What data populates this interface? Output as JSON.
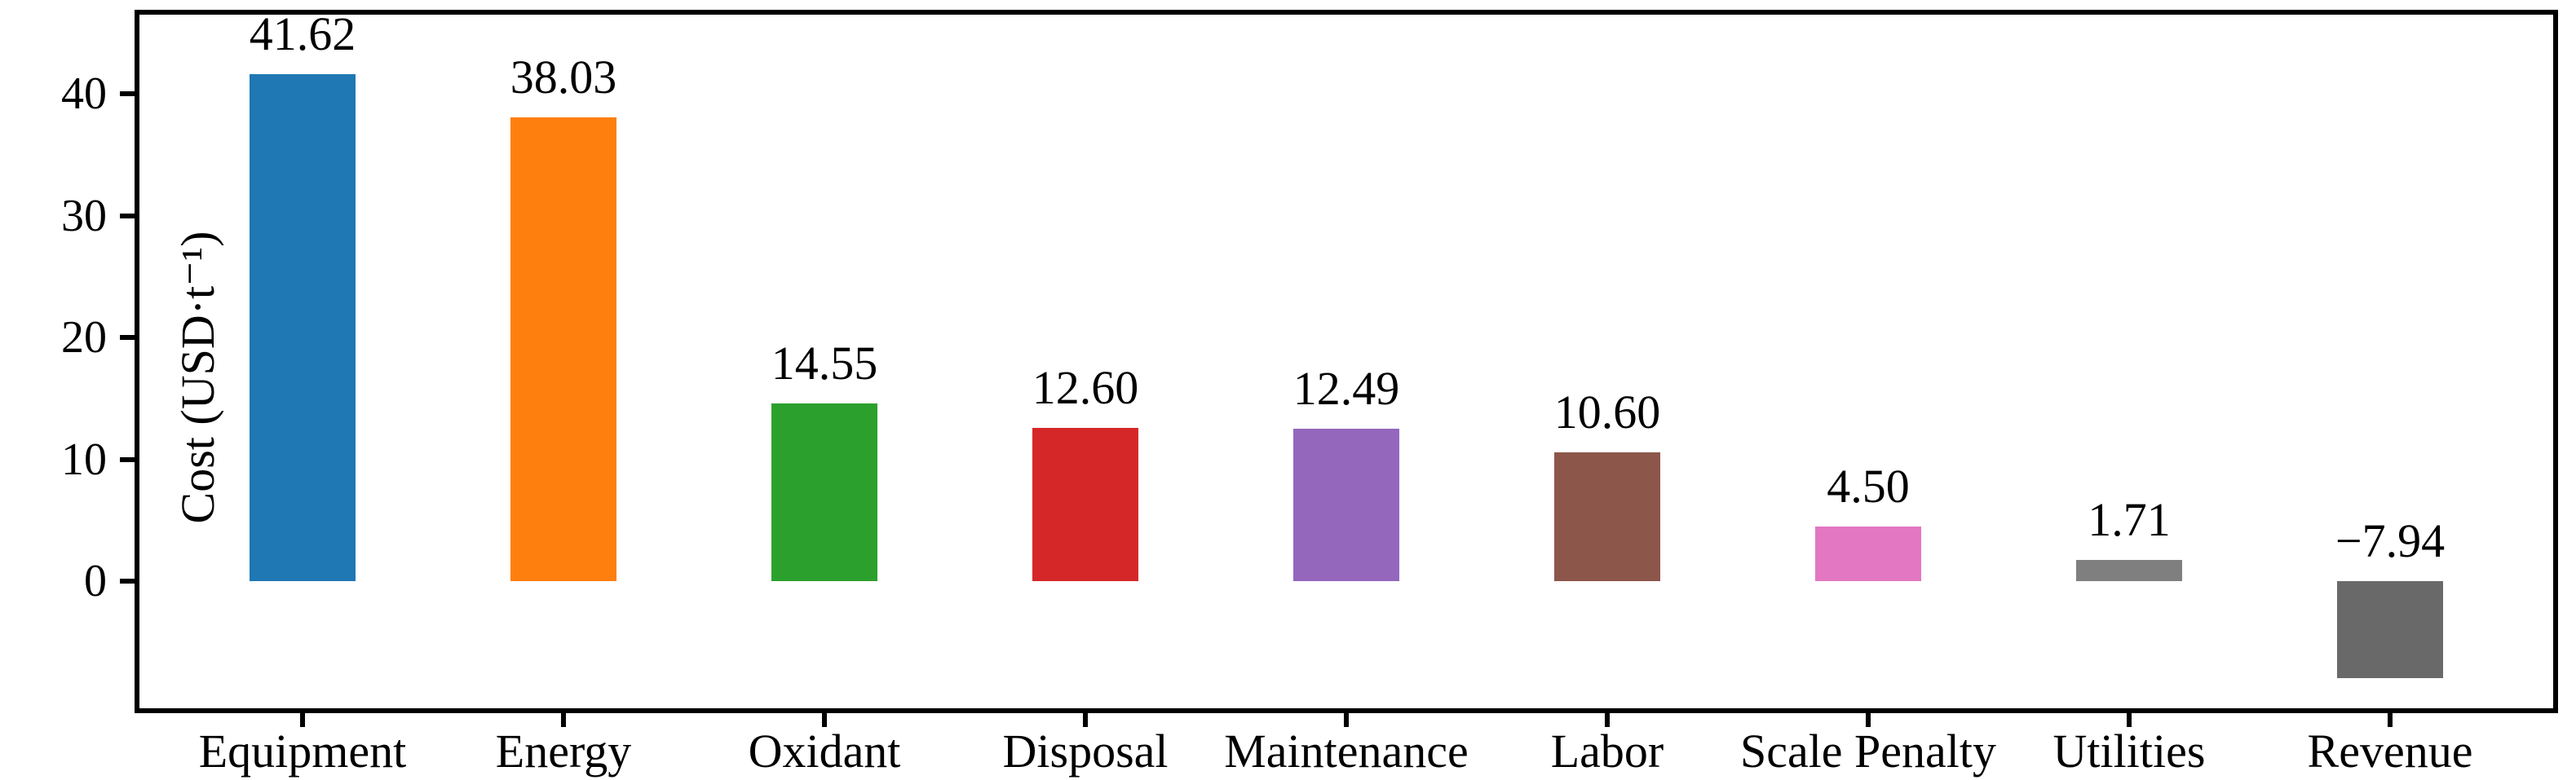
{
  "chart_data": {
    "type": "bar",
    "title": "",
    "xlabel": "",
    "ylabel": "Cost (USD·t⁻¹)",
    "categories": [
      "Equipment",
      "Energy",
      "Oxidant",
      "Disposal",
      "Maintenance",
      "Labor",
      "Scale Penalty",
      "Utilities",
      "Revenue"
    ],
    "values": [
      41.62,
      38.03,
      14.55,
      12.6,
      12.49,
      10.6,
      4.5,
      1.71,
      -7.94
    ],
    "value_labels": [
      "41.62",
      "38.03",
      "14.55",
      "12.60",
      "12.49",
      "10.60",
      "4.50",
      "1.71",
      "−7.94"
    ],
    "bar_colors": [
      "#1f77b4",
      "#ff7f0e",
      "#2ca02c",
      "#d62728",
      "#9467bd",
      "#8c564b",
      "#e377c2",
      "#7f7f7f",
      "#696969"
    ],
    "yticks": [
      0,
      10,
      20,
      30,
      40
    ],
    "ytick_labels": [
      "0",
      "10",
      "20",
      "30",
      "40"
    ],
    "ylim": [
      -10.5,
      46.7
    ],
    "grid": false,
    "legend": null,
    "bar_width_fraction": 0.4,
    "axis_color": "#000000",
    "background_color": "#ffffff"
  }
}
